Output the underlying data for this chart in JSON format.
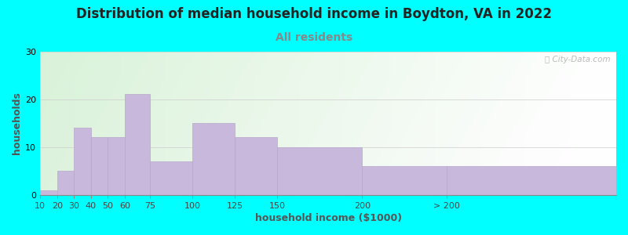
{
  "title": "Distribution of median household income in Boydton, VA in 2022",
  "subtitle": "All residents",
  "xlabel": "household income ($1000)",
  "ylabel": "households",
  "background_color": "#00FFFF",
  "bar_color": "#C8B8DC",
  "bar_edge_color": "#B8A8CC",
  "categories": [
    "10",
    "20",
    "30",
    "40",
    "50",
    "60",
    "75",
    "100",
    "125",
    "150",
    "200",
    "> 200"
  ],
  "values": [
    1,
    5,
    14,
    12,
    12,
    21,
    7,
    15,
    12,
    10,
    6,
    6
  ],
  "bar_widths": [
    10,
    10,
    10,
    10,
    10,
    15,
    25,
    25,
    25,
    50,
    50,
    100
  ],
  "bar_lefts": [
    10,
    20,
    30,
    40,
    50,
    60,
    75,
    100,
    125,
    150,
    200,
    250
  ],
  "xlim_left": 10,
  "xlim_right": 350,
  "ylim": [
    0,
    30
  ],
  "yticks": [
    0,
    10,
    20,
    30
  ],
  "title_fontsize": 12,
  "subtitle_fontsize": 10,
  "subtitle_color": "#888888",
  "axis_label_fontsize": 9,
  "tick_fontsize": 8,
  "watermark_text": "Ⓢ City-Data.com",
  "gradient_colors": [
    "#d8f0d0",
    "#eaf5e0",
    "#f5faf0",
    "#ffffff"
  ],
  "gradient_stops": [
    0.0,
    0.3,
    0.6,
    1.0
  ]
}
